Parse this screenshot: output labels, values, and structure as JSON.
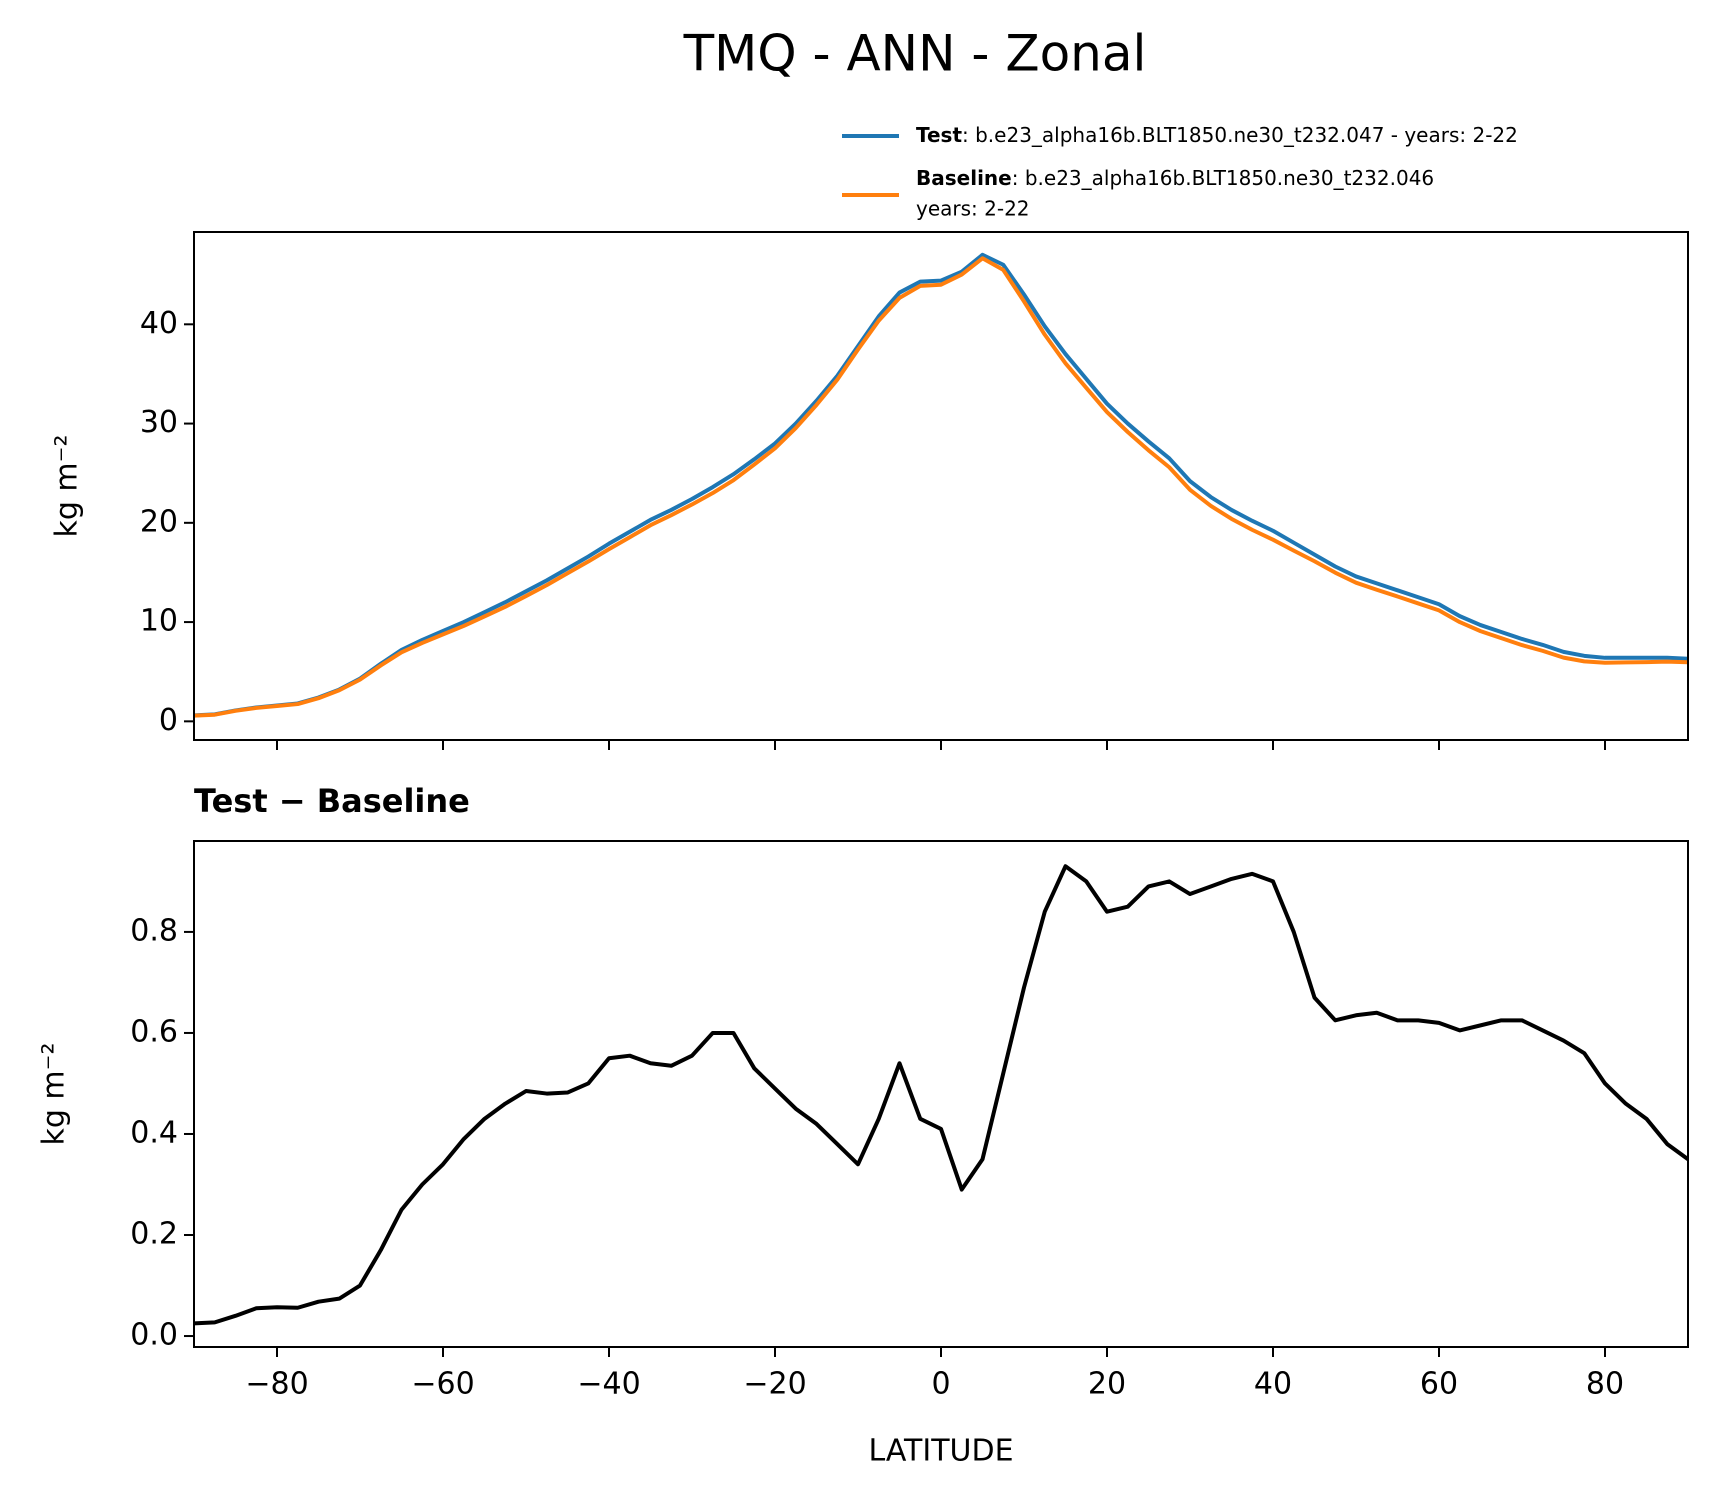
{
  "chart_data": [
    {
      "type": "line",
      "title": "TMQ - ANN - Zonal",
      "ylabel": "kg m⁻²",
      "x": [
        -90,
        -87.5,
        -85,
        -82.5,
        -80,
        -77.5,
        -75,
        -72.5,
        -70,
        -67.5,
        -65,
        -62.5,
        -60,
        -57.5,
        -55,
        -52.5,
        -50,
        -47.5,
        -45,
        -42.5,
        -40,
        -37.5,
        -35,
        -32.5,
        -30,
        -27.5,
        -25,
        -22.5,
        -20,
        -17.5,
        -15,
        -12.5,
        -10,
        -7.5,
        -5,
        -2.5,
        0,
        2.5,
        5,
        7.5,
        10,
        12.5,
        15,
        17.5,
        20,
        22.5,
        25,
        27.5,
        30,
        32.5,
        35,
        37.5,
        40,
        42.5,
        45,
        47.5,
        50,
        52.5,
        55,
        57.5,
        60,
        62.5,
        65,
        67.5,
        70,
        72.5,
        75,
        77.5,
        80,
        82.5,
        85,
        87.5,
        90
      ],
      "series": [
        {
          "name": "Test",
          "description": [
            ": b.e23_alpha16b.BLT1850.ne30_t232.047 - years: 2-22"
          ],
          "color": "#1f77b4",
          "values": [
            0.6,
            0.7,
            1.1,
            1.4,
            1.6,
            1.8,
            2.4,
            3.2,
            4.3,
            5.8,
            7.2,
            8.2,
            9.1,
            10.0,
            11.0,
            12.0,
            13.1,
            14.2,
            15.4,
            16.6,
            17.9,
            19.1,
            20.3,
            21.3,
            22.4,
            23.6,
            24.9,
            26.4,
            28.0,
            30.0,
            32.3,
            34.8,
            37.8,
            40.8,
            43.2,
            44.3,
            44.4,
            45.3,
            47.0,
            46.0,
            43.0,
            39.8,
            37.0,
            34.5,
            32.0,
            30.0,
            28.2,
            26.5,
            24.2,
            22.6,
            21.3,
            20.2,
            19.2,
            18.0,
            16.8,
            15.6,
            14.6,
            13.9,
            13.2,
            12.5,
            11.8,
            10.6,
            9.7,
            9.0,
            8.3,
            7.7,
            7.0,
            6.6,
            6.4,
            6.4,
            6.4,
            6.4,
            6.3
          ]
        },
        {
          "name": "Baseline",
          "description": [
            ": b.e23_alpha16b.BLT1850.ne30_t232.046",
            "years: 2-22"
          ],
          "color": "#ff7f0e",
          "values": [
            0.58,
            0.67,
            1.06,
            1.35,
            1.54,
            1.74,
            2.33,
            3.13,
            4.2,
            5.63,
            6.95,
            7.9,
            8.76,
            9.61,
            10.57,
            11.54,
            12.62,
            13.72,
            14.92,
            16.1,
            17.35,
            18.55,
            19.76,
            20.77,
            21.85,
            23.0,
            24.3,
            25.87,
            27.51,
            29.55,
            31.88,
            34.42,
            37.46,
            40.37,
            42.66,
            43.87,
            43.99,
            45.01,
            46.65,
            45.48,
            42.31,
            38.96,
            36.07,
            33.6,
            31.16,
            29.15,
            27.31,
            25.6,
            23.33,
            21.71,
            20.4,
            19.29,
            18.3,
            17.2,
            16.13,
            14.98,
            13.97,
            13.26,
            12.58,
            11.88,
            11.18,
            10.0,
            9.09,
            8.38,
            7.68,
            7.1,
            6.42,
            6.04,
            5.9,
            5.94,
            5.97,
            6.02,
            5.95
          ]
        }
      ],
      "xlim": [
        -90,
        90
      ],
      "xticks": [
        -80,
        -60,
        -40,
        -20,
        0,
        20,
        40,
        60,
        80
      ],
      "ylim": [
        -1.88,
        49.3
      ],
      "yticks": [
        0,
        10,
        20,
        30,
        40
      ]
    },
    {
      "type": "line",
      "title": "Test − Baseline",
      "ylabel": "kg m⁻²",
      "xlabel": "LATITUDE",
      "x": [
        -90,
        -87.5,
        -85,
        -82.5,
        -80,
        -77.5,
        -75,
        -72.5,
        -70,
        -67.5,
        -65,
        -62.5,
        -60,
        -57.5,
        -55,
        -52.5,
        -50,
        -47.5,
        -45,
        -42.5,
        -40,
        -37.5,
        -35,
        -32.5,
        -30,
        -27.5,
        -25,
        -22.5,
        -20,
        -17.5,
        -15,
        -12.5,
        -10,
        -7.5,
        -5,
        -2.5,
        0,
        2.5,
        5,
        7.5,
        10,
        12.5,
        15,
        17.5,
        20,
        22.5,
        25,
        27.5,
        30,
        32.5,
        35,
        37.5,
        40,
        42.5,
        45,
        47.5,
        50,
        52.5,
        55,
        57.5,
        60,
        62.5,
        65,
        67.5,
        70,
        72.5,
        75,
        77.5,
        80,
        82.5,
        85,
        87.5,
        90
      ],
      "series": [
        {
          "color": "#000000",
          "values": [
            0.025,
            0.027,
            0.04,
            0.055,
            0.057,
            0.056,
            0.068,
            0.074,
            0.1,
            0.17,
            0.25,
            0.3,
            0.34,
            0.39,
            0.43,
            0.46,
            0.485,
            0.48,
            0.482,
            0.5,
            0.55,
            0.555,
            0.54,
            0.535,
            0.555,
            0.6,
            0.6,
            0.53,
            0.49,
            0.45,
            0.42,
            0.38,
            0.34,
            0.43,
            0.54,
            0.43,
            0.41,
            0.29,
            0.35,
            0.52,
            0.69,
            0.84,
            0.93,
            0.9,
            0.84,
            0.85,
            0.89,
            0.9,
            0.875,
            0.89,
            0.905,
            0.915,
            0.9,
            0.8,
            0.67,
            0.625,
            0.635,
            0.64,
            0.625,
            0.625,
            0.62,
            0.605,
            0.615,
            0.625,
            0.625,
            0.605,
            0.585,
            0.56,
            0.5,
            0.46,
            0.43,
            0.38,
            0.35
          ]
        }
      ],
      "xlim": [
        -90,
        90
      ],
      "xticks": [
        {
          "value": -80,
          "label": "−80"
        },
        {
          "value": -60,
          "label": "−60"
        },
        {
          "value": -40,
          "label": "−40"
        },
        {
          "value": -20,
          "label": "−20"
        },
        0,
        20,
        40,
        60,
        80
      ],
      "ylim": [
        -0.0217,
        0.98
      ],
      "yticks": [
        {
          "value": 0,
          "label": "0.0"
        },
        0.2,
        0.4,
        0.6,
        0.8
      ]
    }
  ]
}
